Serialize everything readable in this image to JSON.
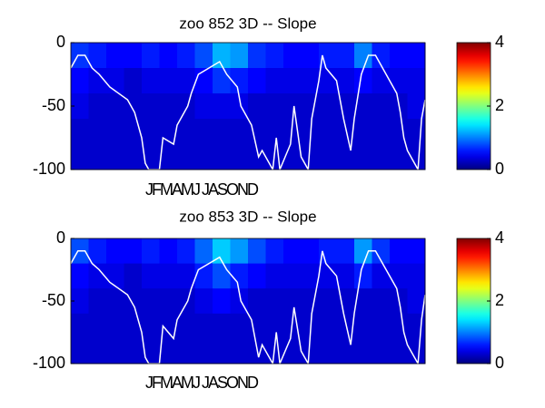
{
  "chart_data": [
    {
      "type": "heatmap",
      "title": "zoo  852 3D   -- Slope",
      "x_label": "JFMAMJ JASOND",
      "xlim": [
        0,
        100
      ],
      "ylim": [
        -100,
        0
      ],
      "yticks": [
        0,
        -50,
        -100
      ],
      "clim": [
        0,
        4
      ],
      "cticks": [
        0,
        2,
        4
      ],
      "colormap": "jet",
      "z": [
        [
          0.7,
          0.6,
          0.5,
          0.5,
          0.6,
          0.5,
          0.6,
          0.8,
          1.2,
          1.1,
          0.7,
          0.6,
          0.5,
          0.5,
          0.6,
          0.6,
          1.0,
          0.6,
          0.5,
          0.5
        ],
        [
          0.5,
          0.4,
          0.4,
          0.3,
          0.4,
          0.4,
          0.4,
          0.5,
          0.7,
          0.6,
          0.5,
          0.4,
          0.4,
          0.4,
          0.4,
          0.4,
          0.5,
          0.4,
          0.4,
          0.4
        ],
        [
          0.4,
          0.3,
          0.3,
          0.3,
          0.3,
          0.3,
          0.3,
          0.4,
          0.4,
          0.4,
          0.3,
          0.3,
          0.3,
          0.3,
          0.3,
          0.3,
          0.3,
          0.3,
          0.3,
          0.4
        ],
        [
          0.3,
          0.3,
          0.3,
          0.3,
          0.3,
          0.3,
          0.3,
          0.3,
          0.3,
          0.3,
          0.3,
          0.3,
          0.3,
          0.3,
          0.3,
          0.3,
          0.3,
          0.3,
          0.3,
          0.3
        ],
        [
          0.3,
          0.3,
          0.3,
          0.3,
          0.3,
          0.3,
          0.3,
          0.3,
          0.3,
          0.3,
          0.3,
          0.3,
          0.3,
          0.3,
          0.3,
          0.3,
          0.3,
          0.3,
          0.3,
          0.3
        ]
      ],
      "line": {
        "color": "#ffffff",
        "x": [
          0,
          2,
          4,
          6,
          8,
          11,
          16,
          18,
          20,
          21,
          22,
          25,
          26,
          29,
          30,
          33,
          34,
          36,
          39,
          42,
          44,
          47,
          48,
          51,
          53,
          54,
          57,
          58,
          59,
          62,
          63,
          65,
          67,
          68,
          70,
          71,
          72,
          75,
          77,
          79,
          80,
          82,
          84,
          86,
          89,
          92,
          93,
          94,
          95,
          97,
          98,
          99,
          100
        ],
        "values": [
          -20,
          -10,
          -10,
          -20,
          -25,
          -35,
          -45,
          -55,
          -75,
          -95,
          -100,
          -100,
          -75,
          -80,
          -65,
          -50,
          -40,
          -25,
          -20,
          -15,
          -25,
          -35,
          -50,
          -65,
          -90,
          -85,
          -100,
          -75,
          -100,
          -80,
          -50,
          -90,
          -100,
          -60,
          -30,
          -10,
          -20,
          -30,
          -60,
          -85,
          -60,
          -25,
          -10,
          -10,
          -25,
          -40,
          -55,
          -75,
          -85,
          -95,
          -100,
          -60,
          -45
        ]
      }
    },
    {
      "type": "heatmap",
      "title": "zoo  853 3D   -- Slope",
      "x_label": "JFMAMJ JASOND",
      "xlim": [
        0,
        100
      ],
      "ylim": [
        -100,
        0
      ],
      "yticks": [
        0,
        -50,
        -100
      ],
      "clim": [
        0,
        4
      ],
      "cticks": [
        0,
        2,
        4
      ],
      "colormap": "jet",
      "z": [
        [
          0.8,
          0.6,
          0.5,
          0.5,
          0.6,
          0.5,
          0.6,
          0.9,
          1.3,
          1.1,
          0.8,
          0.6,
          0.5,
          0.5,
          0.6,
          0.6,
          1.1,
          0.7,
          0.5,
          0.5
        ],
        [
          0.5,
          0.4,
          0.4,
          0.3,
          0.4,
          0.4,
          0.4,
          0.6,
          0.8,
          0.6,
          0.5,
          0.4,
          0.4,
          0.4,
          0.4,
          0.4,
          0.6,
          0.4,
          0.4,
          0.4
        ],
        [
          0.4,
          0.3,
          0.3,
          0.3,
          0.3,
          0.3,
          0.3,
          0.4,
          0.5,
          0.4,
          0.3,
          0.3,
          0.3,
          0.3,
          0.3,
          0.3,
          0.3,
          0.3,
          0.3,
          0.4
        ],
        [
          0.3,
          0.3,
          0.3,
          0.3,
          0.3,
          0.3,
          0.3,
          0.3,
          0.3,
          0.3,
          0.3,
          0.3,
          0.3,
          0.3,
          0.3,
          0.3,
          0.3,
          0.3,
          0.3,
          0.3
        ],
        [
          0.3,
          0.3,
          0.3,
          0.3,
          0.3,
          0.3,
          0.3,
          0.3,
          0.3,
          0.3,
          0.3,
          0.3,
          0.3,
          0.3,
          0.3,
          0.3,
          0.3,
          0.3,
          0.3,
          0.3
        ]
      ],
      "line": {
        "color": "#ffffff",
        "x": [
          0,
          2,
          4,
          6,
          8,
          11,
          16,
          18,
          20,
          21,
          22,
          25,
          26,
          29,
          30,
          33,
          34,
          36,
          39,
          42,
          44,
          47,
          48,
          51,
          53,
          54,
          57,
          58,
          59,
          62,
          63,
          65,
          67,
          68,
          70,
          71,
          72,
          75,
          77,
          79,
          80,
          82,
          84,
          86,
          89,
          92,
          93,
          94,
          95,
          97,
          98,
          99,
          100
        ],
        "values": [
          -20,
          -10,
          -10,
          -20,
          -25,
          -35,
          -45,
          -55,
          -75,
          -95,
          -100,
          -100,
          -70,
          -80,
          -65,
          -50,
          -40,
          -25,
          -20,
          -15,
          -25,
          -35,
          -50,
          -65,
          -95,
          -85,
          -100,
          -75,
          -100,
          -80,
          -55,
          -90,
          -100,
          -60,
          -30,
          -10,
          -20,
          -30,
          -60,
          -85,
          -60,
          -25,
          -10,
          -10,
          -25,
          -40,
          -55,
          -75,
          -85,
          -95,
          -100,
          -65,
          -45
        ]
      }
    }
  ]
}
